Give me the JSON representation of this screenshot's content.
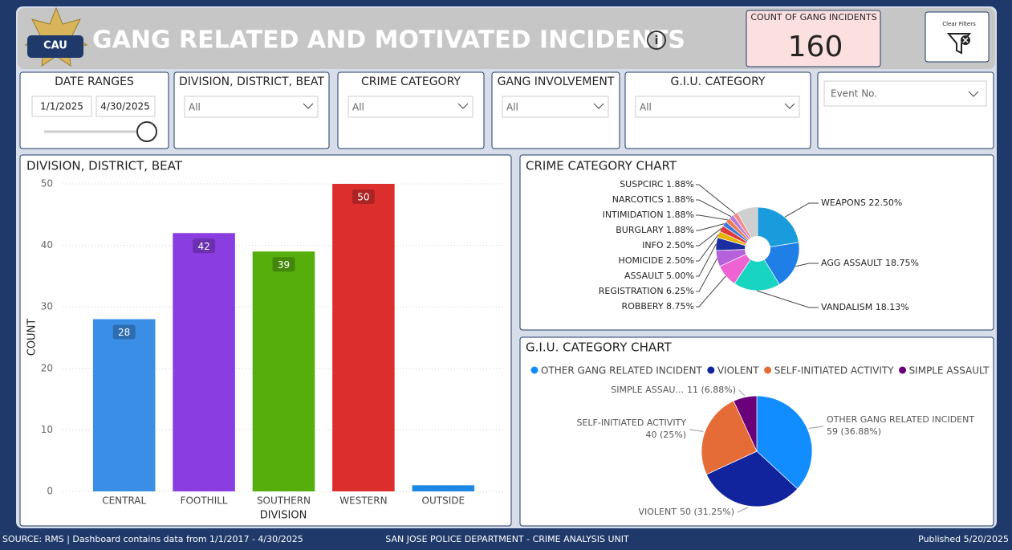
{
  "header": {
    "title": "GANG RELATED AND MOTIVATED INCIDENTS",
    "logo_text": "CAU",
    "kpi_label": "COUNT OF GANG INCIDENTS",
    "kpi_value": 160,
    "clear_filters": "Clear Filters"
  },
  "filters": [
    {
      "label": "DATE RANGES",
      "start": "1/1/2025",
      "end": "4/30/2025"
    },
    {
      "label": "DIVISION, DISTRICT, BEAT",
      "selection": "All"
    },
    {
      "label": "CRIME CATEGORY",
      "selection": "All"
    },
    {
      "label": "GANG INVOLVEMENT",
      "selection": "All"
    },
    {
      "label": "G.I.U. CATEGORY",
      "selection": "All"
    },
    {
      "placeholder": "Event No."
    }
  ],
  "chart_data": [
    {
      "type": "bar",
      "title": "DIVISION, DISTRICT, BEAT",
      "xlabel": "DIVISION",
      "ylabel": "COUNT",
      "categories": [
        "CENTRAL",
        "FOOTHILL",
        "SOUTHERN",
        "WESTERN",
        "OUTSIDE"
      ],
      "values": [
        28,
        42,
        39,
        50,
        1
      ],
      "value_labels": [
        "28",
        "42",
        "39",
        "50",
        null
      ],
      "colors": [
        "#3a8ee6",
        "#8a3de0",
        "#55ae0c",
        "#dd2e2e",
        "#1e88e5"
      ],
      "ylim": [
        0,
        50
      ],
      "yticks": [
        0,
        10,
        20,
        30,
        40,
        50
      ],
      "grid": true
    },
    {
      "type": "donut",
      "title": "CRIME CATEGORY CHART",
      "labels": [
        "WEAPONS 22.50%",
        "AGG ASSAULT 18.75%",
        "VANDALISM 18.13%",
        "ROBBERY 8.75%",
        "REGISTRATION 6.25%",
        "ASSAULT 5.00%",
        "HOMICIDE 2.50%",
        "INFO 2.50%",
        "BURGLARY 1.88%",
        "INTIMIDATION 1.88%",
        "NARCOTICS 1.88%",
        "SUSPCIRC 1.88%"
      ],
      "values": [
        22.5,
        18.75,
        18.13,
        8.75,
        6.25,
        5.0,
        2.5,
        2.5,
        1.88,
        1.88,
        1.88,
        1.88
      ],
      "colors": [
        "#1a9bdc",
        "#1f7fe6",
        "#17d5c0",
        "#ee62d4",
        "#b561d9",
        "#1d2fa0",
        "#e8b400",
        "#e03a3a",
        "#3a7ae0",
        "#ec7d4e",
        "#b47ad8",
        "#f28a8a"
      ]
    },
    {
      "type": "pie",
      "title": "G.I.U. CATEGORY CHART",
      "categories": [
        "OTHER GANG RELATED INCIDENT",
        "VIOLENT",
        "SELF-INITIATED ACTIVITY",
        "SIMPLE ASSAULT"
      ],
      "slice_names": [
        "OTHER GANG RELATED INCIDENT",
        "VIOLENT",
        "SELF-INITIATED ACTIVITY",
        "SIMPLE ASSAU..."
      ],
      "values": [
        59,
        50,
        40,
        11
      ],
      "value_labels": [
        "59 (36.88%)",
        "50 (31.25%)",
        "40 (25%)",
        "11 (6.88%)"
      ],
      "colors": [
        "#118dff",
        "#12239e",
        "#e66c37",
        "#6b007b"
      ]
    }
  ],
  "footer": {
    "left": "SOURCE: RMS | Dashboard contains data from 1/1/2017 - 4/30/2025",
    "center": "SAN JOSE POLICE DEPARTMENT - CRIME ANALYSIS UNIT",
    "right": "Published 5/20/2025"
  }
}
